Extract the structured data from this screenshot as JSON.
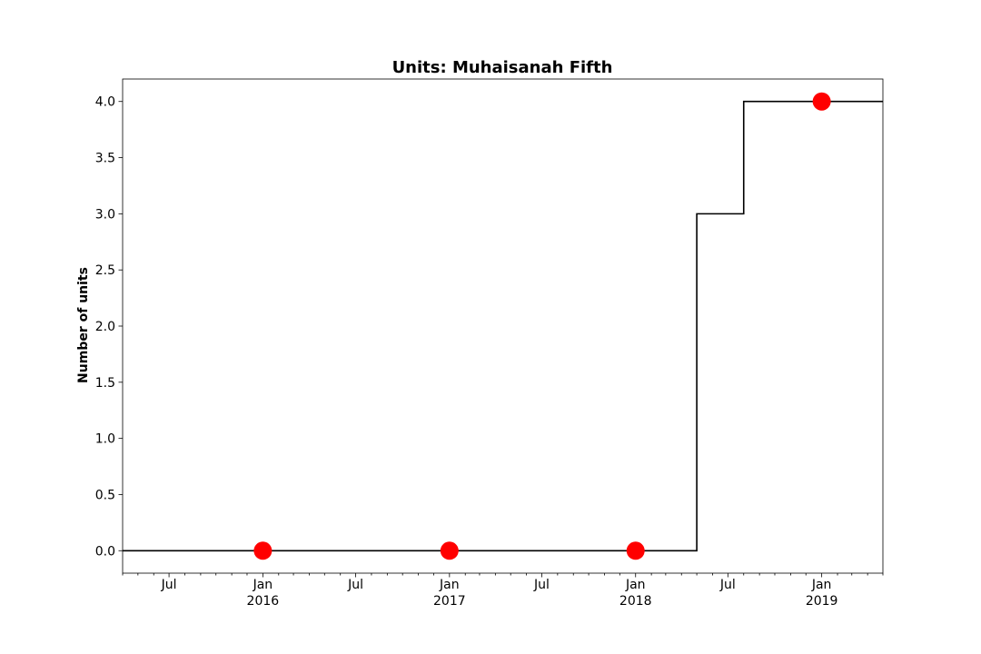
{
  "chart_data": {
    "type": "line",
    "title": "Units: Muhaisanah Fifth",
    "xlabel": "",
    "ylabel": "Number of units",
    "xlim": [
      "2015-04-01",
      "2019-05-01"
    ],
    "ylim": [
      -0.2,
      4.2
    ],
    "grid": false,
    "legend": "none",
    "colors": {
      "line": "#000000",
      "markers": "#ff0000",
      "axes": "#000000"
    },
    "series": [
      {
        "style": "step-post",
        "x": [
          "2015-04-01",
          "2018-05-01",
          "2018-08-01",
          "2019-05-01"
        ],
        "y": [
          0,
          3,
          4,
          4
        ]
      },
      {
        "style": "markers",
        "x": [
          "2016-01-01",
          "2017-01-01",
          "2018-01-01",
          "2019-01-01"
        ],
        "y": [
          0,
          0,
          0,
          4
        ]
      }
    ],
    "y_ticks": [
      0.0,
      0.5,
      1.0,
      1.5,
      2.0,
      2.5,
      3.0,
      3.5,
      4.0
    ],
    "y_tick_labels": [
      "0.0",
      "0.5",
      "1.0",
      "1.5",
      "2.0",
      "2.5",
      "3.0",
      "3.5",
      "4.0"
    ],
    "x_major_ticks": [
      {
        "date": "2015-07-01",
        "label": "Jul",
        "sublabel": ""
      },
      {
        "date": "2016-01-01",
        "label": "Jan",
        "sublabel": "2016"
      },
      {
        "date": "2016-07-01",
        "label": "Jul",
        "sublabel": ""
      },
      {
        "date": "2017-01-01",
        "label": "Jan",
        "sublabel": "2017"
      },
      {
        "date": "2017-07-01",
        "label": "Jul",
        "sublabel": ""
      },
      {
        "date": "2018-01-01",
        "label": "Jan",
        "sublabel": "2018"
      },
      {
        "date": "2018-07-01",
        "label": "Jul",
        "sublabel": ""
      },
      {
        "date": "2019-01-01",
        "label": "Jan",
        "sublabel": "2019"
      }
    ]
  }
}
